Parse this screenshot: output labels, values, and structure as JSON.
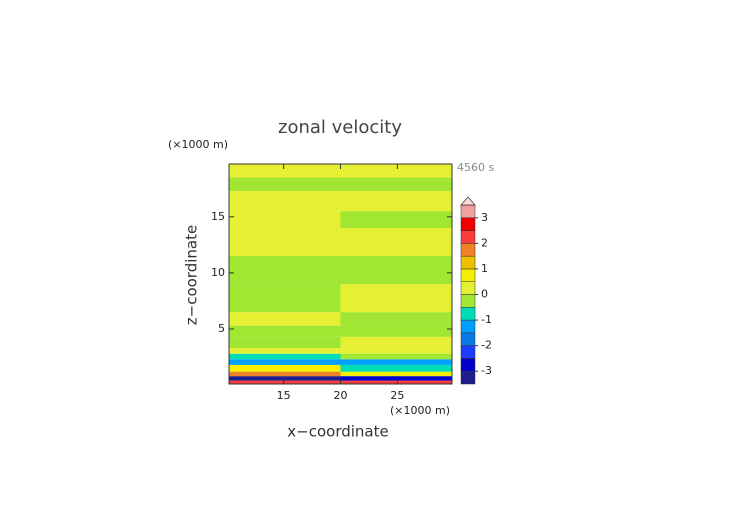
{
  "chart_data": {
    "type": "contour",
    "title": "zonal velocity",
    "time_label": "4560 s",
    "xlabel": "x−coordinate",
    "ylabel": "z−coordinate",
    "x_unit": "(×1000 m)",
    "y_unit": "(×1000 m)",
    "xlim": [
      10.2,
      29.8
    ],
    "ylim": [
      0.1,
      19.7
    ],
    "xticks": [
      15,
      20,
      25
    ],
    "yticks": [
      5,
      10,
      15
    ],
    "x": [
      10.2,
      20,
      29.8
    ],
    "z": [
      0.1,
      0.4,
      0.8,
      1.2,
      1.8,
      2.3,
      2.8,
      3.3,
      4.3,
      5.3,
      6.5,
      9,
      11.5,
      14,
      15.5,
      16.3,
      17.3,
      18.5,
      19.7
    ],
    "values": [
      [
        2.2,
        2.2
      ],
      [
        -3.2,
        -2.7
      ],
      [
        1.7,
        0.7
      ],
      [
        0.7,
        -0.7
      ],
      [
        -1.2,
        -1.2
      ],
      [
        -0.7,
        -0.3
      ],
      [
        0.2,
        0.2
      ],
      [
        -0.2,
        0.2
      ],
      [
        -0.2,
        -0.2
      ],
      [
        0.2,
        -0.2
      ],
      [
        -0.2,
        0.2
      ],
      [
        -0.2,
        -0.2
      ],
      [
        0.2,
        0.2
      ],
      [
        0.2,
        -0.2
      ],
      [
        0.2,
        0.2
      ],
      [
        0.2,
        0.2
      ],
      [
        -0.2,
        -0.2
      ],
      [
        0.2,
        0.2
      ]
    ],
    "colorbar": {
      "levels": [
        -3.5,
        -3,
        -2.5,
        -2,
        -1.5,
        -1,
        -0.5,
        0,
        0.5,
        1,
        1.5,
        2,
        2.5,
        3,
        3.5
      ],
      "colors": [
        "#1e1e8c",
        "#0000c8",
        "#1e3cff",
        "#0a78e6",
        "#00a0ff",
        "#00dcb4",
        "#a0e632",
        "#e6f032",
        "#f5f000",
        "#f0c000",
        "#f08228",
        "#fa3c3c",
        "#f00000",
        "#f0a0a0"
      ],
      "over_color": "#ffd8d8",
      "ticks": [
        -3,
        -2,
        -1,
        0,
        1,
        2,
        3
      ]
    }
  }
}
